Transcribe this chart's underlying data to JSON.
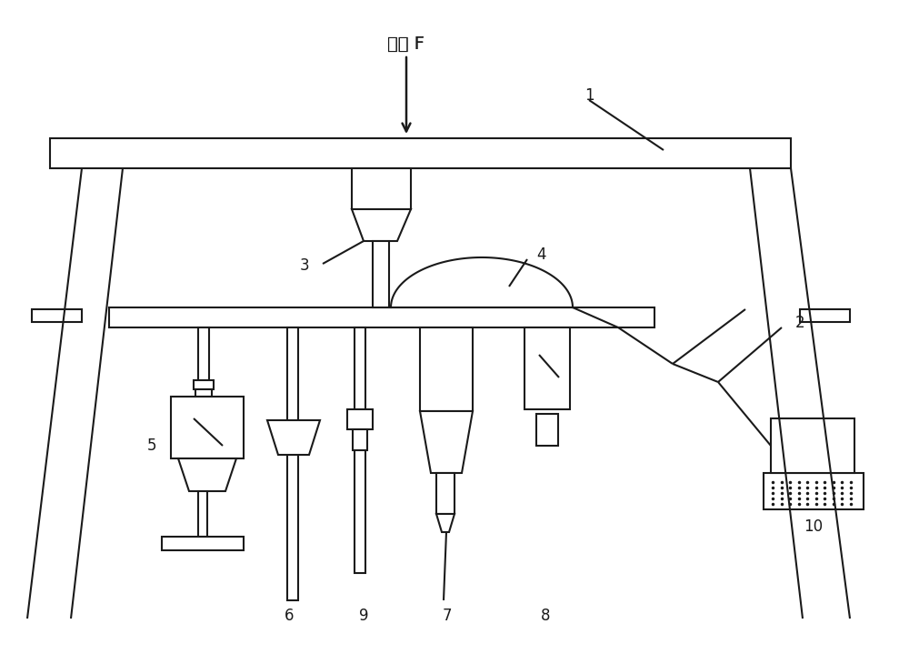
{
  "bg_color": "#ffffff",
  "lc": "#1a1a1a",
  "lw": 1.5,
  "pressure_label": "压力 F",
  "numbers": [
    "1",
    "2",
    "3",
    "4",
    "5",
    "6",
    "7",
    "8",
    "9",
    "10"
  ],
  "fig_width": 10.0,
  "fig_height": 7.19
}
